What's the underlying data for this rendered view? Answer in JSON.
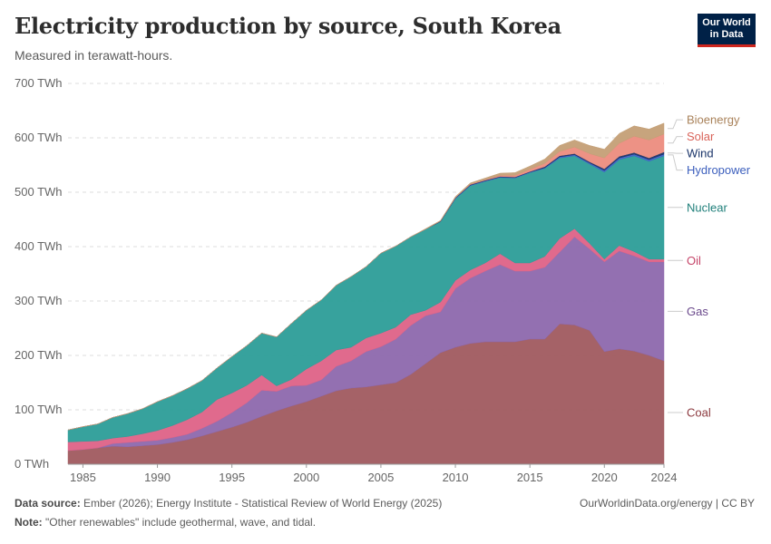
{
  "header": {
    "title": "Electricity production by source, South Korea",
    "subtitle": "Measured in terawatt-hours.",
    "logo_line1": "Our World",
    "logo_line2": "in Data"
  },
  "footer": {
    "source_label": "Data source:",
    "source_text": "Ember (2026); Energy Institute - Statistical Review of World Energy (2025)",
    "note_label": "Note:",
    "note_text": "\"Other renewables\" include geothermal, wave, and tidal.",
    "credit": "OurWorldinData.org/energy | CC BY"
  },
  "chart_data": {
    "type": "area",
    "stacked": true,
    "title": "Electricity production by source, South Korea",
    "subtitle": "Measured in terawatt-hours.",
    "unit": "TWh",
    "ylim": [
      0,
      700
    ],
    "y_ticks": [
      0,
      100,
      200,
      300,
      400,
      500,
      600,
      700
    ],
    "y_tick_labels": [
      "0 TWh",
      "100 TWh",
      "200 TWh",
      "300 TWh",
      "400 TWh",
      "500 TWh",
      "600 TWh",
      "700 TWh"
    ],
    "x_ticks": [
      1985,
      1990,
      1995,
      2000,
      2005,
      2010,
      2015,
      2020,
      2024
    ],
    "xlim": [
      1984,
      2024
    ],
    "grid": "horizontal dashed",
    "legend_placement": "right",
    "x": [
      1984,
      1985,
      1986,
      1987,
      1988,
      1989,
      1990,
      1991,
      1992,
      1993,
      1994,
      1995,
      1996,
      1997,
      1998,
      1999,
      2000,
      2001,
      2002,
      2003,
      2004,
      2005,
      2006,
      2007,
      2008,
      2009,
      2010,
      2011,
      2012,
      2013,
      2014,
      2015,
      2016,
      2017,
      2018,
      2019,
      2020,
      2021,
      2022,
      2023,
      2024
    ],
    "series": [
      {
        "name": "Coal",
        "color": "#a05a5f",
        "values": [
          25,
          27,
          30,
          33,
          32,
          34,
          36,
          40,
          45,
          52,
          60,
          68,
          77,
          88,
          98,
          107,
          115,
          125,
          135,
          140,
          142,
          146,
          150,
          165,
          185,
          205,
          215,
          222,
          225,
          225,
          225,
          230,
          230,
          258,
          256,
          246,
          207,
          212,
          208,
          200,
          190
        ]
      },
      {
        "name": "Gas",
        "color": "#8d68ad",
        "values": [
          0,
          0,
          0,
          5,
          8,
          8,
          8,
          9,
          10,
          14,
          19,
          27,
          36,
          48,
          36,
          37,
          30,
          30,
          45,
          50,
          65,
          70,
          80,
          90,
          88,
          75,
          108,
          120,
          130,
          142,
          130,
          125,
          132,
          132,
          162,
          150,
          165,
          180,
          175,
          172,
          182
        ]
      },
      {
        "name": "Oil",
        "color": "#de6287",
        "values": [
          16,
          15,
          13,
          10,
          11,
          14,
          18,
          22,
          27,
          30,
          40,
          36,
          32,
          28,
          10,
          12,
          30,
          35,
          30,
          25,
          25,
          25,
          22,
          20,
          10,
          18,
          15,
          15,
          15,
          20,
          15,
          15,
          20,
          25,
          15,
          10,
          5,
          10,
          8,
          5,
          5
        ]
      },
      {
        "name": "Nuclear",
        "color": "#2c9d98",
        "values": [
          22,
          27,
          31,
          38,
          42,
          46,
          53,
          55,
          57,
          58,
          58,
          67,
          73,
          77,
          90,
          103,
          108,
          112,
          119,
          130,
          131,
          147,
          149,
          143,
          149,
          148,
          150,
          155,
          150,
          140,
          156,
          166,
          162,
          148,
          134,
          146,
          160,
          158,
          176,
          180,
          190
        ]
      },
      {
        "name": "Hydropower",
        "color": "#3d61c8",
        "values": [
          0,
          0,
          0,
          0,
          0,
          0,
          0,
          0,
          0,
          0,
          0,
          0,
          0,
          0,
          0,
          0,
          0,
          0,
          0,
          0,
          0,
          0,
          0,
          0,
          0,
          0,
          1,
          1,
          1,
          1,
          1,
          1,
          1,
          2,
          2,
          2,
          3,
          3,
          3,
          3,
          3
        ]
      },
      {
        "name": "Wind",
        "color": "#1a3469",
        "values": [
          0,
          0,
          0,
          0,
          0,
          0,
          0,
          0,
          0,
          0,
          0,
          0,
          0,
          0,
          0,
          0,
          0,
          0,
          0,
          0,
          0,
          0,
          0,
          0,
          0,
          1,
          1,
          1,
          1,
          1,
          1,
          1,
          2,
          2,
          2,
          2,
          3,
          3,
          3,
          3,
          4
        ]
      },
      {
        "name": "Solar",
        "color": "#ec8c7e",
        "values": [
          0,
          0,
          0,
          0,
          0,
          0,
          0,
          0,
          0,
          0,
          0,
          0,
          0,
          0,
          0,
          0,
          0,
          0,
          0,
          0,
          0,
          0,
          0,
          0,
          0,
          0,
          0,
          1,
          1,
          2,
          3,
          4,
          6,
          8,
          12,
          15,
          20,
          24,
          30,
          33,
          33
        ]
      },
      {
        "name": "Bioenergy",
        "color": "#c49f76",
        "values": [
          0,
          0,
          0,
          0,
          0,
          0,
          0,
          0,
          0,
          0,
          0,
          0,
          0,
          0,
          0,
          0,
          0,
          0,
          0,
          0,
          0,
          0,
          0,
          0,
          1,
          1,
          2,
          2,
          3,
          4,
          5,
          6,
          8,
          11,
          13,
          15,
          16,
          18,
          19,
          20,
          20
        ]
      }
    ]
  }
}
